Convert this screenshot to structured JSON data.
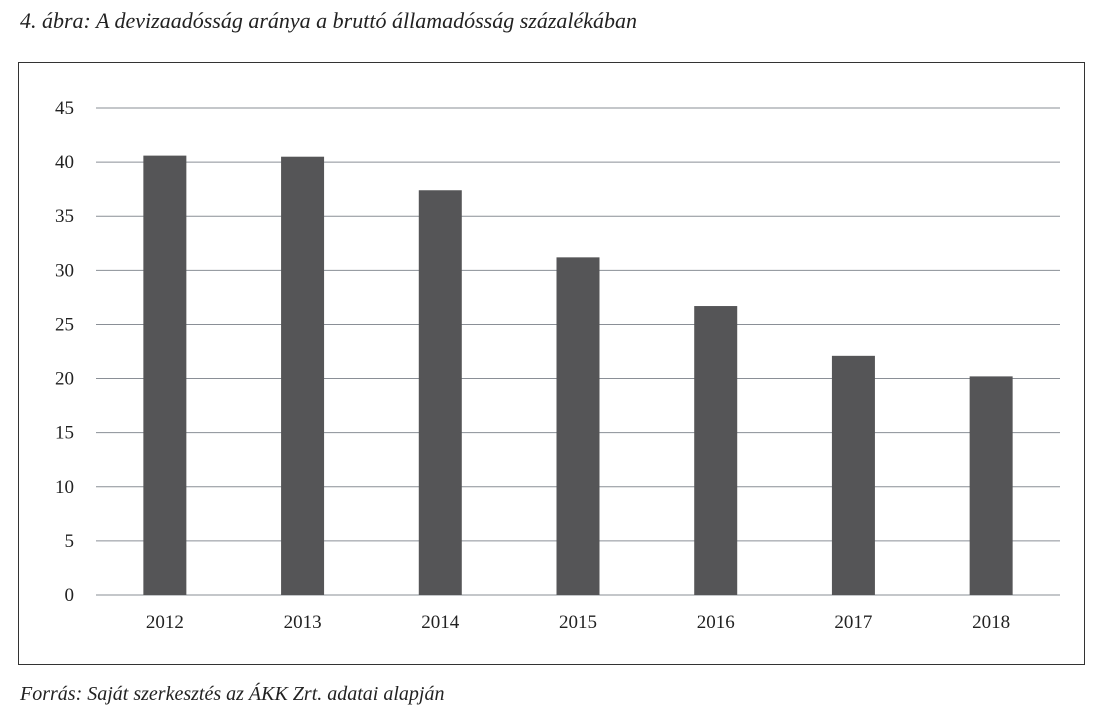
{
  "title": "4. ábra: A devizaadósság aránya a bruttó államadósság százalékában",
  "source": "Forrás: Saját szerkesztés az ÁKK Zrt. adatai alapján",
  "chart_data": {
    "type": "bar",
    "title": "4. ábra: A devizaadósság aránya a bruttó államadósság százalékában",
    "xlabel": "",
    "ylabel": "",
    "categories": [
      "2012",
      "2013",
      "2014",
      "2015",
      "2016",
      "2017",
      "2018"
    ],
    "values": [
      40.6,
      40.5,
      37.4,
      31.2,
      26.7,
      22.1,
      20.2
    ],
    "ylim": [
      0,
      45
    ],
    "yticks": [
      0,
      5,
      10,
      15,
      20,
      25,
      30,
      35,
      40,
      45
    ],
    "grid": true,
    "bar_color": "#555557",
    "grid_color": "#8a8f96"
  }
}
